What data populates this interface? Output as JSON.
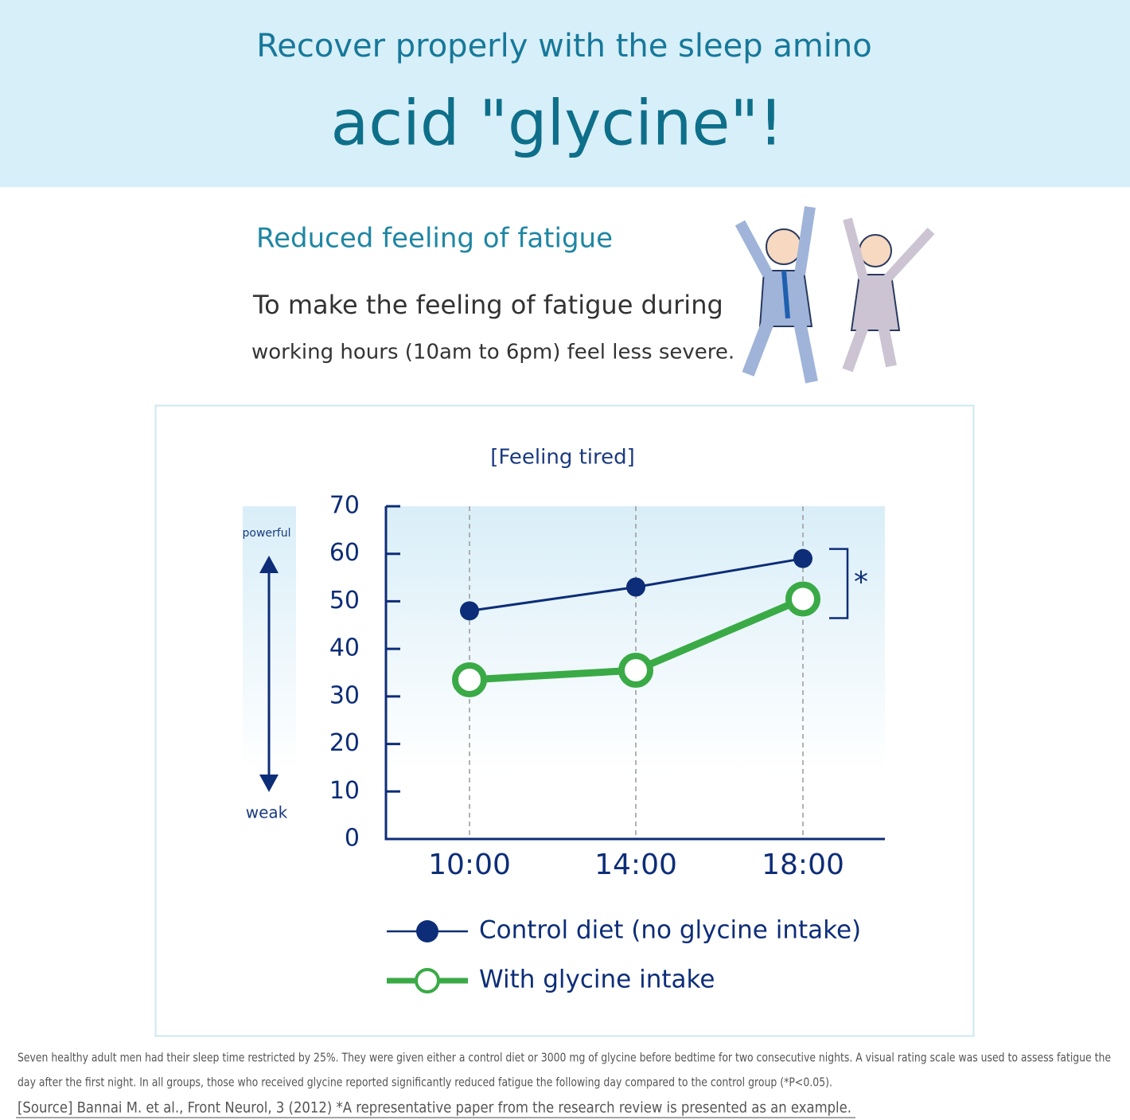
{
  "header": {
    "title_line1": "Recover properly with the sleep amino",
    "title_line2": "acid \"glycine\"!"
  },
  "section": {
    "heading": "Reduced feeling of fatigue",
    "body_line1": "To make the feeling of fatigue during",
    "body_line2": "working hours (10am to 6pm) feel less severe."
  },
  "chart_data": {
    "type": "line",
    "title": "[Feeling tired]",
    "axis_top_label": "powerful",
    "axis_bottom_label": "weak",
    "annotation": "*",
    "categories": [
      "10:00",
      "14:00",
      "18:00"
    ],
    "series": [
      {
        "name": "Control diet (no glycine intake)",
        "color": "#0d2d78",
        "values": [
          48,
          53,
          59
        ]
      },
      {
        "name": "With glycine intake",
        "color": "#3aaa46",
        "values": [
          33.5,
          35.5,
          50.5
        ]
      }
    ],
    "ylim": [
      0,
      70
    ],
    "yticks": [
      0,
      10,
      20,
      30,
      40,
      50,
      60,
      70
    ],
    "grid": true
  },
  "footnotes": {
    "line1": "Seven healthy adult men had their sleep time restricted by 25%. They were given either a control diet or 3000 mg of glycine before bedtime for two consecutive nights. A visual rating scale was used to assess fatigue the",
    "line2": "day after the first night. In all groups, those who received glycine reported significantly reduced fatigue the following day compared to the control group (*P<0.05).",
    "source": "[Source] Bannai M. et al., Front Neurol, 3 (2012) *A representative paper from the research review is presented as an example."
  }
}
